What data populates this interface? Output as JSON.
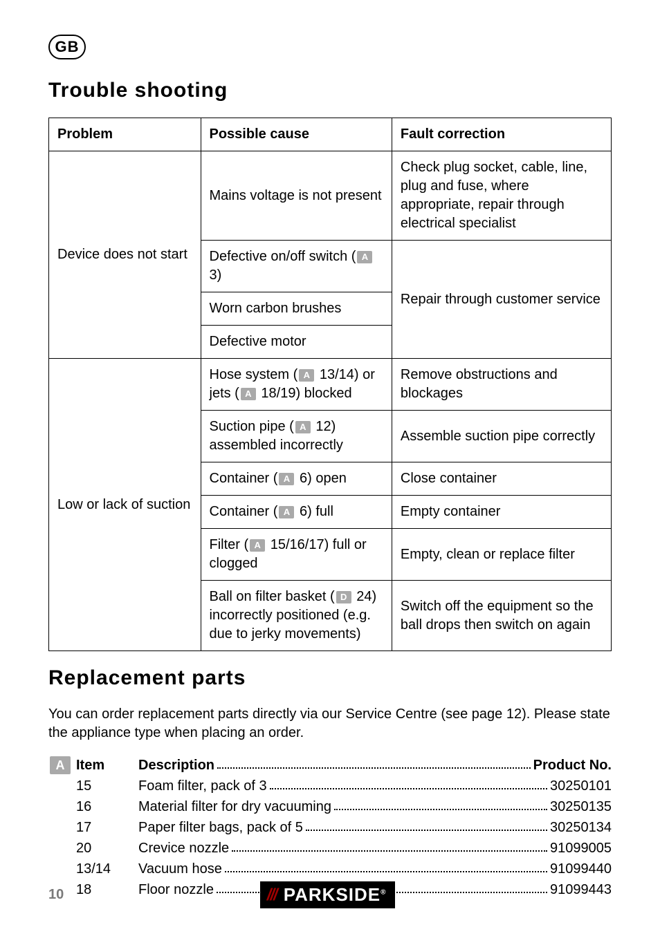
{
  "badge": "GB",
  "section_trouble": "Trouble shooting",
  "section_replace": "Replacement parts",
  "icon_A": "A",
  "icon_D": "D",
  "table": {
    "headers": {
      "c1": "Problem",
      "c2": "Possible cause",
      "c3": "Fault correction"
    },
    "r1": {
      "problem": "Device does not start",
      "cause": "Mains voltage is not present",
      "fix": "Check plug socket, cable, line, plug and fuse, where appropriate, repair through electrical specialist"
    },
    "r2": {
      "cause_pre": "Defective on/off switch (",
      "cause_post": " 3)",
      "fix": "Repair through customer service"
    },
    "r3": {
      "cause": "Worn carbon brushes"
    },
    "r4": {
      "cause": "Defective motor"
    },
    "r5": {
      "problem": "Low or lack of suction",
      "cause_pre": "Hose system (",
      "cause_mid": " 13/14) or jets (",
      "cause_post": " 18/19) blocked",
      "fix": "Remove obstructions and blockages"
    },
    "r6": {
      "cause_pre": "Suction pipe (",
      "cause_post": " 12) assembled incorrectly",
      "fix": "Assemble suction pipe correctly"
    },
    "r7": {
      "cause_pre": "Container (",
      "cause_post": " 6) open",
      "fix": "Close container"
    },
    "r8": {
      "cause_pre": "Container (",
      "cause_post": " 6) full",
      "fix": "Empty container"
    },
    "r9": {
      "cause_pre": "Filter (",
      "cause_post": " 15/16/17) full or clogged",
      "fix": "Empty, clean or replace filter"
    },
    "r10": {
      "cause_pre": "Ball on filter basket (",
      "cause_post": " 24) incorrectly positioned (e.g. due to jerky movements)",
      "fix": "Switch off the equipment so the ball drops then switch on again"
    }
  },
  "replace_intro": "You can order replacement parts directly via our Service Centre (see page 12). Please state the appliance type when placing an order.",
  "parts": {
    "head_item": "Item",
    "head_desc": "Description",
    "head_prod": "Product No.",
    "rows": [
      {
        "item": "15",
        "desc": "Foam filter, pack of 3",
        "prod": "30250101"
      },
      {
        "item": "16",
        "desc": "Material filter for dry vacuuming",
        "prod": "30250135"
      },
      {
        "item": "17",
        "desc": "Paper filter bags, pack of 5",
        "prod": "30250134"
      },
      {
        "item": "20",
        "desc": "Crevice nozzle",
        "prod": "91099005"
      },
      {
        "item": "13/14",
        "desc": "Vacuum hose",
        "prod": "91099440"
      },
      {
        "item": "18",
        "desc": "Floor nozzle",
        "prod": "91099443"
      }
    ]
  },
  "footer": {
    "page": "10",
    "brand": "PARKSIDE",
    "reg": "®"
  },
  "colors": {
    "icon_bg": "#a9a9a9",
    "brand_bg": "#000000",
    "stripes": "#a00000",
    "page_num": "#7a7a7a"
  }
}
